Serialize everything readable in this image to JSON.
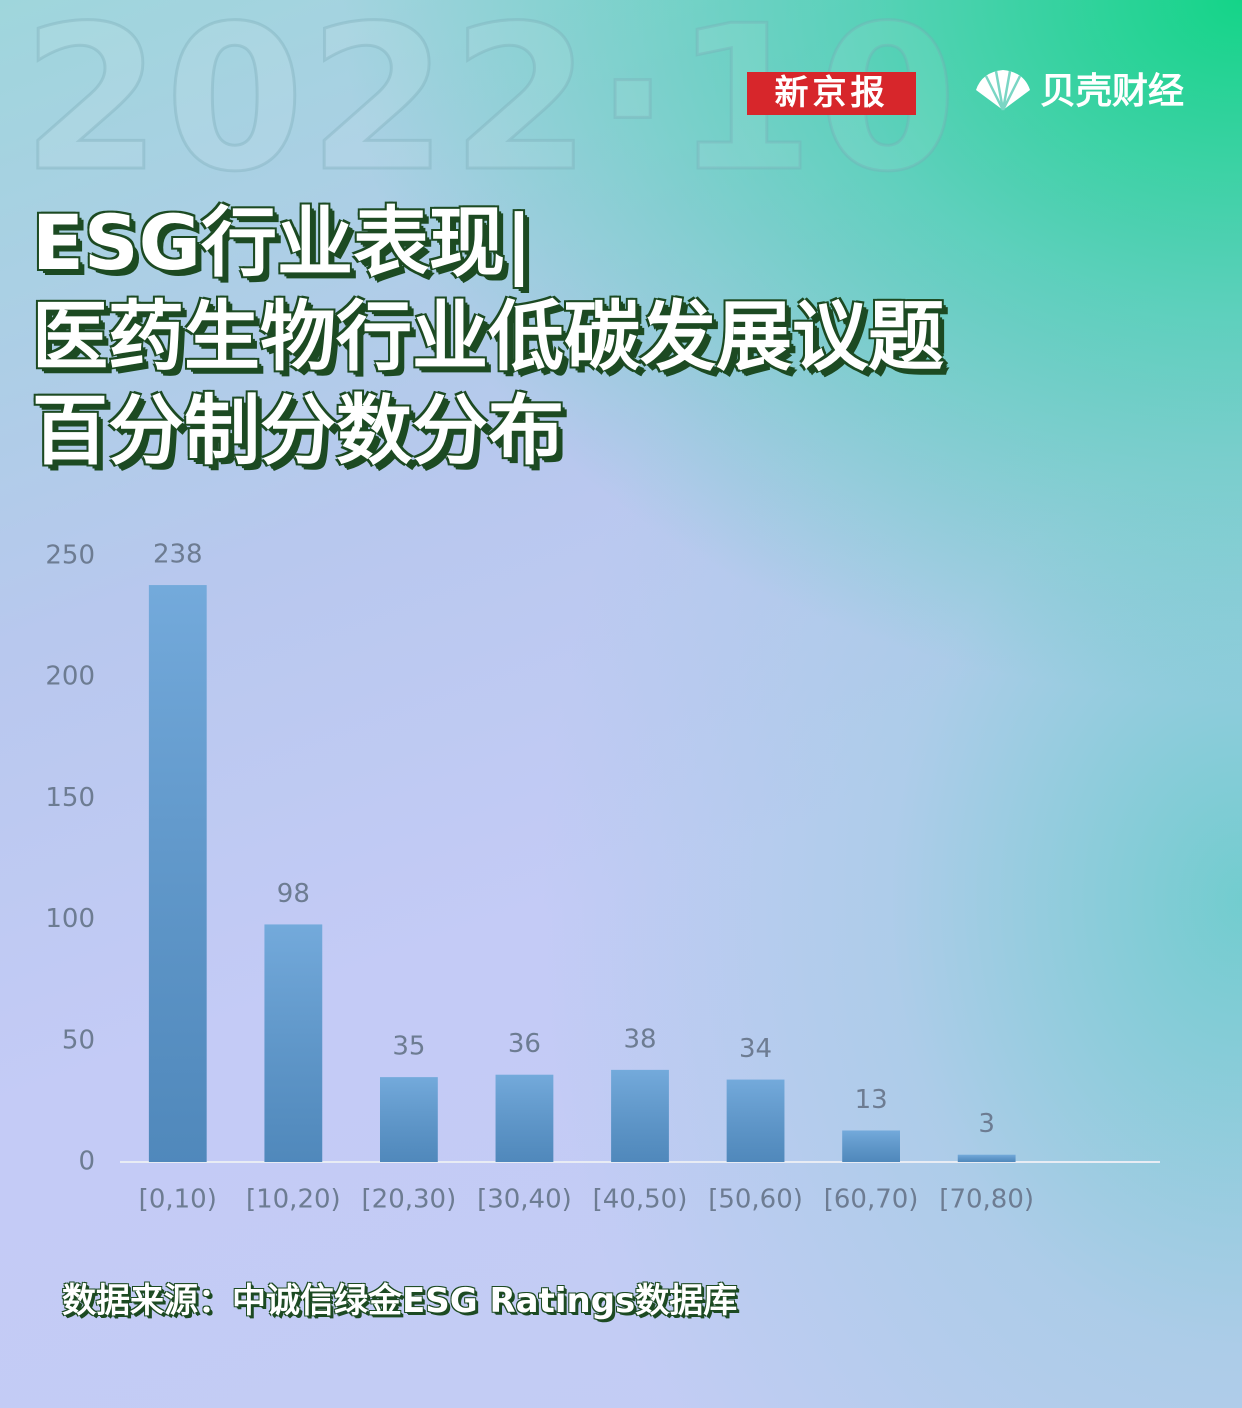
{
  "header": {
    "watermark": "2022·10",
    "logos": [
      "新京报",
      "贝壳财经"
    ]
  },
  "chart_data": {
    "type": "bar",
    "title": [
      "ESG行业表现|",
      "医药生物行业低碳发展议题",
      "百分制分数分布"
    ],
    "source": "数据来源：中诚信绿金ESG Ratings数据库",
    "categories": [
      "[0,10)",
      "[10,20)",
      "[20,30)",
      "[30,40)",
      "[40,50)",
      "[50,60)",
      "[60,70)",
      "[70,80)",
      null
    ],
    "values": [
      238,
      98,
      35,
      36,
      38,
      34,
      13,
      3,
      null
    ],
    "color": "#5b9bd5",
    "ylim": [
      0,
      250
    ],
    "yticks": [
      0,
      50,
      100,
      150,
      200,
      250
    ],
    "grid": false
  }
}
